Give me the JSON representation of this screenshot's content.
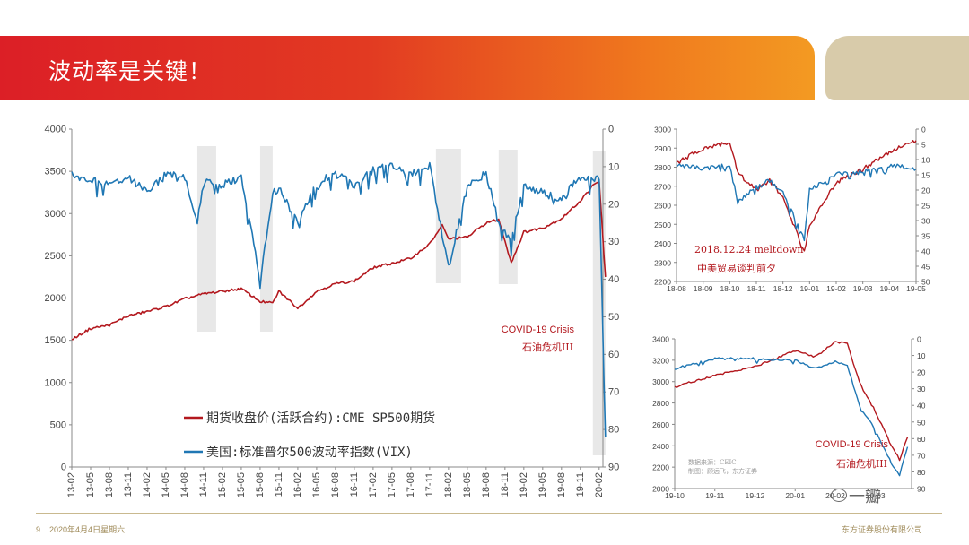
{
  "slide": {
    "title": "波动率是关键！",
    "page_number": "9",
    "date_text": "2020年4月4日星期六",
    "company": "东方证券股份有限公司",
    "watermark": "一瓣",
    "colors": {
      "banner_start": "#dc1f26",
      "banner_end": "#f39a22",
      "deco": "#d8cbaa",
      "sp500": "#b3181e",
      "vix": "#1f77b4",
      "shade": "#e4e4e4"
    }
  },
  "chart_data": [
    {
      "type": "line",
      "title": "",
      "legend": [
        "期货收盘价(活跃合约):CME SP500期货",
        "美国:标准普尔500波动率指数(VIX)"
      ],
      "legend_placement": "bottom-left-inside",
      "x_ticks": [
        "13-02",
        "13-05",
        "13-08",
        "13-11",
        "14-02",
        "14-05",
        "14-08",
        "14-11",
        "15-02",
        "15-05",
        "15-08",
        "15-11",
        "16-02",
        "16-05",
        "16-08",
        "16-11",
        "17-02",
        "17-05",
        "17-08",
        "17-11",
        "18-02",
        "18-05",
        "18-08",
        "18-11",
        "19-02",
        "19-05",
        "19-08",
        "19-11",
        "20-02"
      ],
      "y_left": {
        "range": [
          0,
          4000
        ],
        "ticks": [
          0,
          500,
          1000,
          1500,
          2000,
          2500,
          3000,
          3500,
          4000
        ]
      },
      "y_right": {
        "range": [
          0,
          90
        ],
        "inverted": true,
        "ticks": [
          0,
          10,
          20,
          30,
          40,
          50,
          60,
          70,
          80,
          90
        ]
      },
      "shaded_periods": [
        [
          "14-10",
          "15-01"
        ],
        [
          "15-08",
          "15-10"
        ],
        [
          "17-12",
          "18-04"
        ],
        [
          "18-10",
          "19-01"
        ],
        [
          "20-01",
          "20-03"
        ]
      ],
      "annotations": [
        "COVID-19 Crisis",
        "石油危机III"
      ],
      "series": [
        {
          "name": "期货收盘价(活跃合约):CME SP500期货",
          "axis": "left",
          "points": [
            [
              "13-02",
              1510
            ],
            [
              "13-05",
              1640
            ],
            [
              "13-08",
              1680
            ],
            [
              "13-11",
              1790
            ],
            [
              "14-02",
              1840
            ],
            [
              "14-05",
              1900
            ],
            [
              "14-08",
              1990
            ],
            [
              "14-11",
              2050
            ],
            [
              "15-02",
              2080
            ],
            [
              "15-05",
              2110
            ],
            [
              "15-08",
              1960
            ],
            [
              "15-10",
              1940
            ],
            [
              "15-11",
              2080
            ],
            [
              "16-02",
              1880
            ],
            [
              "16-05",
              2080
            ],
            [
              "16-08",
              2170
            ],
            [
              "16-11",
              2200
            ],
            [
              "17-02",
              2360
            ],
            [
              "17-05",
              2410
            ],
            [
              "17-08",
              2470
            ],
            [
              "17-11",
              2640
            ],
            [
              "18-01",
              2860
            ],
            [
              "18-02",
              2700
            ],
            [
              "18-05",
              2720
            ],
            [
              "18-08",
              2890
            ],
            [
              "18-10",
              2930
            ],
            [
              "18-12",
              2420
            ],
            [
              "19-02",
              2780
            ],
            [
              "19-05",
              2830
            ],
            [
              "19-08",
              2940
            ],
            [
              "19-11",
              3150
            ],
            [
              "20-01",
              3330
            ],
            [
              "20-02",
              3380
            ],
            [
              "20-03",
              2250
            ]
          ]
        },
        {
          "name": "美国:标准普尔500波动率指数(VIX)",
          "axis": "right",
          "points": [
            [
              "13-02",
              12
            ],
            [
              "13-05",
              14
            ],
            [
              "13-08",
              14
            ],
            [
              "13-11",
              13
            ],
            [
              "14-02",
              17
            ],
            [
              "14-05",
              12
            ],
            [
              "14-08",
              13
            ],
            [
              "14-10",
              25
            ],
            [
              "14-11",
              14
            ],
            [
              "15-02",
              15
            ],
            [
              "15-05",
              13
            ],
            [
              "15-08",
              40
            ],
            [
              "15-10",
              17
            ],
            [
              "15-11",
              16
            ],
            [
              "16-02",
              25
            ],
            [
              "16-05",
              14
            ],
            [
              "16-08",
              12
            ],
            [
              "16-11",
              15
            ],
            [
              "17-02",
              11
            ],
            [
              "17-05",
              10
            ],
            [
              "17-08",
              12
            ],
            [
              "17-11",
              10
            ],
            [
              "18-02",
              37
            ],
            [
              "18-05",
              15
            ],
            [
              "18-08",
              12
            ],
            [
              "18-10",
              25
            ],
            [
              "18-12",
              30
            ],
            [
              "19-02",
              15
            ],
            [
              "19-05",
              17
            ],
            [
              "19-08",
              19
            ],
            [
              "19-11",
              12
            ],
            [
              "20-01",
              14
            ],
            [
              "20-02",
              13
            ],
            [
              "20-03",
              82
            ]
          ]
        }
      ]
    },
    {
      "type": "line",
      "title": "",
      "x_ticks": [
        "18-08",
        "18-09",
        "18-10",
        "18-11",
        "18-12",
        "19-01",
        "19-02",
        "19-03",
        "19-04",
        "19-05"
      ],
      "y_left": {
        "range": [
          2200,
          3000
        ],
        "ticks": [
          2200,
          2300,
          2400,
          2500,
          2600,
          2700,
          2800,
          2900,
          3000
        ]
      },
      "y_right": {
        "range": [
          0,
          50
        ],
        "inverted": true,
        "ticks": [
          0,
          5,
          10,
          15,
          20,
          25,
          30,
          35,
          40,
          45,
          50
        ]
      },
      "annotations": [
        "2018.12.24 meltdown",
        "中美贸易谈判前夕"
      ],
      "series": [
        {
          "name": "期货收盘价(活跃合约):CME SP500期货",
          "axis": "left",
          "points": [
            [
              "18-08",
              2820
            ],
            [
              "18-09",
              2900
            ],
            [
              "18-10",
              2930
            ],
            [
              "18-10.3",
              2770
            ],
            [
              "18-11",
              2680
            ],
            [
              "18-11.5",
              2730
            ],
            [
              "18-12",
              2640
            ],
            [
              "18-12.8",
              2350
            ],
            [
              "19-01",
              2500
            ],
            [
              "19-02",
              2720
            ],
            [
              "19-03",
              2790
            ],
            [
              "19-04",
              2880
            ],
            [
              "19-05",
              2940
            ]
          ]
        },
        {
          "name": "美国:标准普尔500波动率指数(VIX)",
          "axis": "right",
          "points": [
            [
              "18-08",
              12
            ],
            [
              "18-09",
              13
            ],
            [
              "18-10",
              12
            ],
            [
              "18-10.3",
              24
            ],
            [
              "18-11",
              19
            ],
            [
              "18-11.5",
              17
            ],
            [
              "18-12",
              21
            ],
            [
              "18-12.8",
              36
            ],
            [
              "19-01",
              20
            ],
            [
              "19-02",
              15
            ],
            [
              "19-03",
              14
            ],
            [
              "19-04",
              12
            ],
            [
              "19-05",
              13
            ]
          ]
        }
      ]
    },
    {
      "type": "line",
      "title": "",
      "x_ticks": [
        "19-10",
        "19-11",
        "19-12",
        "20-01",
        "20-02",
        "20-03"
      ],
      "y_left": {
        "range": [
          2000,
          3400
        ],
        "ticks": [
          2000,
          2200,
          2400,
          2600,
          2800,
          3000,
          3200,
          3400
        ]
      },
      "y_right": {
        "range": [
          0,
          90
        ],
        "inverted": true,
        "ticks": [
          0,
          10,
          20,
          30,
          40,
          50,
          60,
          70,
          80,
          90
        ]
      },
      "annotations": [
        "COVID-19 Crisis",
        "石油危机III",
        "数据来源：CEIC",
        "制图：顾远飞，东方证券"
      ],
      "series": [
        {
          "name": "期货收盘价(活跃合约):CME SP500期货",
          "axis": "left",
          "points": [
            [
              "19-10",
              2950
            ],
            [
              "19-11",
              3060
            ],
            [
              "19-12",
              3140
            ],
            [
              "20-01",
              3290
            ],
            [
              "20-01.5",
              3230
            ],
            [
              "20-02",
              3370
            ],
            [
              "20-02.3",
              3360
            ],
            [
              "20-02.6",
              2990
            ],
            [
              "20-03",
              2720
            ],
            [
              "20-03.4",
              2400
            ],
            [
              "20-03.6",
              2270
            ],
            [
              "20-03.8",
              2480
            ]
          ]
        },
        {
          "name": "美国:标准普尔500波动率指数(VIX)",
          "axis": "right",
          "points": [
            [
              "19-10",
              18
            ],
            [
              "19-11",
              12
            ],
            [
              "19-12",
              12
            ],
            [
              "20-01",
              13
            ],
            [
              "20-01.5",
              18
            ],
            [
              "20-02",
              14
            ],
            [
              "20-02.3",
              16
            ],
            [
              "20-02.6",
              40
            ],
            [
              "20-03",
              55
            ],
            [
              "20-03.4",
              75
            ],
            [
              "20-03.6",
              82
            ],
            [
              "20-03.8",
              65
            ]
          ]
        }
      ]
    }
  ]
}
